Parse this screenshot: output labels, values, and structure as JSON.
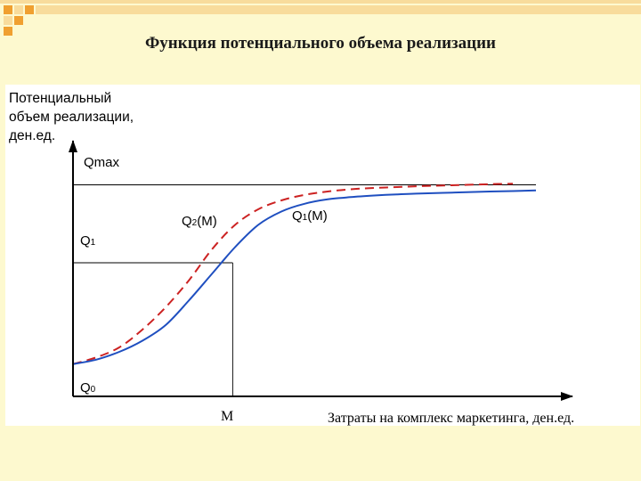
{
  "slide": {
    "title": "Функция потенциального объема реализации"
  },
  "colors": {
    "background": "#fdf9cf",
    "deco_orange": "#f0a030",
    "deco_light": "#f8dc9c",
    "q1_curve": "#1f4fc0",
    "q2_curve": "#cc2222",
    "axis": "#000000"
  },
  "chart_data": {
    "type": "line",
    "ylabel_lines": [
      "Потенциальный",
      "объем реализации,",
      "ден.ед."
    ],
    "xlabel": "Затраты на комплекс маркетинга, ден.ед.",
    "tick_labels": {
      "qmax": "Qmax",
      "q1": "Q",
      "q1_sub": "1",
      "q0": "Q",
      "q0_sub": "0",
      "m": "M"
    },
    "series": [
      {
        "name": "Q1(M)",
        "label_main": "Q",
        "label_sub": "1",
        "label_tail": "(M)",
        "style": "solid",
        "color": "#1f4fc0",
        "x": [
          0,
          0.05,
          0.1,
          0.15,
          0.2,
          0.25,
          0.3,
          0.35,
          0.4,
          0.45,
          0.5,
          0.55,
          0.6,
          0.65,
          0.7,
          0.75,
          0.8,
          0.85,
          0.9,
          0.95,
          1.0
        ],
        "y": [
          0.145,
          0.165,
          0.2,
          0.25,
          0.32,
          0.43,
          0.55,
          0.67,
          0.77,
          0.83,
          0.865,
          0.885,
          0.895,
          0.902,
          0.907,
          0.911,
          0.914,
          0.917,
          0.92,
          0.922,
          0.925
        ]
      },
      {
        "name": "Q2(M)",
        "label_main": "Q",
        "label_sub": "2",
        "label_tail": "(M)",
        "style": "dashed",
        "color": "#cc2222",
        "x": [
          0,
          0.05,
          0.1,
          0.15,
          0.2,
          0.25,
          0.3,
          0.35,
          0.4,
          0.45,
          0.5,
          0.55,
          0.6,
          0.65,
          0.7,
          0.75,
          0.8,
          0.85,
          0.9,
          0.95
        ],
        "y": [
          0.145,
          0.175,
          0.22,
          0.3,
          0.4,
          0.52,
          0.66,
          0.77,
          0.84,
          0.88,
          0.905,
          0.92,
          0.93,
          0.936,
          0.94,
          0.944,
          0.947,
          0.95,
          0.953,
          0.955
        ]
      }
    ],
    "reference_lines": {
      "qmax_y": 0.95,
      "q1_y": 0.6,
      "m_x": 0.345
    },
    "xlim": [
      0,
      1.05
    ],
    "ylim": [
      0,
      1.1
    ],
    "grid": false
  }
}
